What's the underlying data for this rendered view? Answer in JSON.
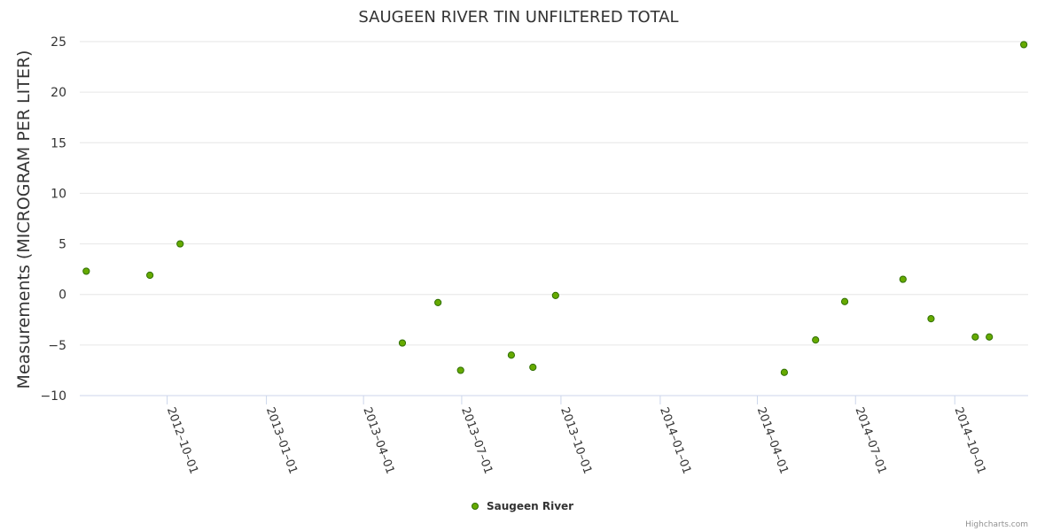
{
  "chart_data": {
    "type": "scatter",
    "title": "SAUGEEN RIVER TIN UNFILTERED TOTAL",
    "xlabel": "",
    "ylabel": "Measurements (MICROGRAM PER LITER)",
    "ylim": [
      -10,
      25
    ],
    "yticks": [
      "−10",
      "−5",
      "0",
      "5",
      "10",
      "15",
      "20",
      "25"
    ],
    "ytick_values": [
      -10,
      -5,
      0,
      5,
      10,
      15,
      20,
      25
    ],
    "xlim": [
      "2012-07-12",
      "2014-12-08"
    ],
    "xticks": [
      "2012-10-01",
      "2013-01-01",
      "2013-04-01",
      "2013-07-01",
      "2013-10-01",
      "2014-01-01",
      "2014-04-01",
      "2014-07-01",
      "2014-10-01"
    ],
    "grid": true,
    "legend_position": "bottom-center",
    "series": [
      {
        "name": "Saugeen River",
        "color": "#66aa00",
        "points": [
          {
            "x": "2012-07-18",
            "y": 2.3
          },
          {
            "x": "2012-09-15",
            "y": 1.9
          },
          {
            "x": "2012-10-13",
            "y": 5.0
          },
          {
            "x": "2013-05-07",
            "y": -4.8
          },
          {
            "x": "2013-06-09",
            "y": -0.8
          },
          {
            "x": "2013-06-30",
            "y": -7.5
          },
          {
            "x": "2013-08-16",
            "y": -6.0
          },
          {
            "x": "2013-09-05",
            "y": -7.2
          },
          {
            "x": "2013-09-26",
            "y": -0.1
          },
          {
            "x": "2014-04-26",
            "y": -7.7
          },
          {
            "x": "2014-05-25",
            "y": -4.5
          },
          {
            "x": "2014-06-21",
            "y": -0.7
          },
          {
            "x": "2014-08-14",
            "y": 1.5
          },
          {
            "x": "2014-09-09",
            "y": -2.4
          },
          {
            "x": "2014-10-20",
            "y": -4.2
          },
          {
            "x": "2014-11-02",
            "y": -4.2
          },
          {
            "x": "2014-12-04",
            "y": 24.7
          }
        ]
      }
    ]
  },
  "credit": "Highcharts.com"
}
